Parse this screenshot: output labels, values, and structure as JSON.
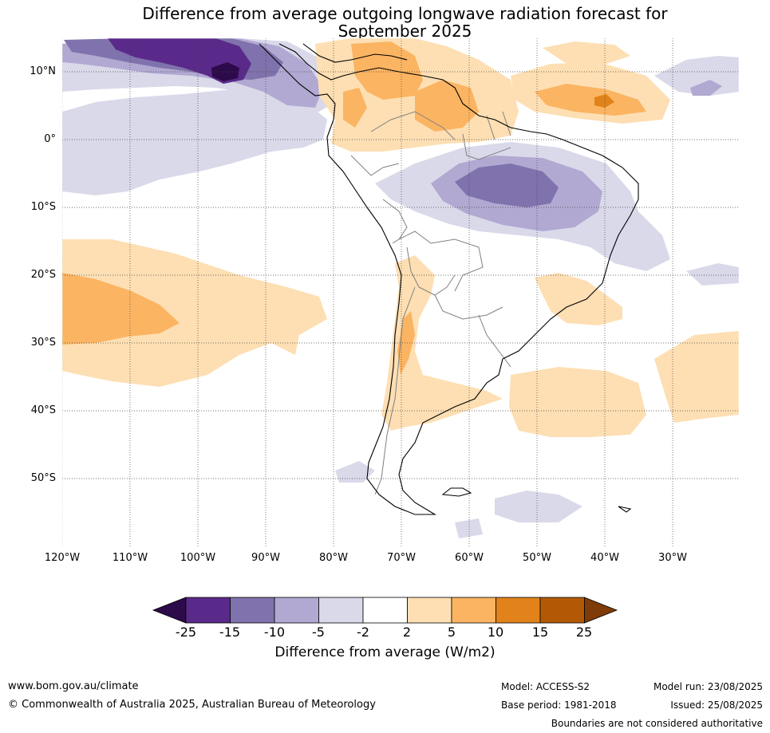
{
  "title": {
    "line1": "Difference from average outgoing longwave radiation forecast for",
    "line2": "September 2025"
  },
  "lat_labels": [
    "10°N",
    "0°",
    "10°S",
    "20°S",
    "30°S",
    "40°S",
    "50°S"
  ],
  "lon_labels": [
    "120°W",
    "110°W",
    "100°W",
    "90°W",
    "80°W",
    "70°W",
    "60°W",
    "50°W",
    "40°W",
    "30°W"
  ],
  "colorbar": {
    "ticks": [
      "-25",
      "-15",
      "-10",
      "-5",
      "-2",
      "2",
      "5",
      "10",
      "15",
      "25"
    ],
    "colors": {
      "below_-25": "#2d0a4a",
      "-25_-15": "#5a2a8a",
      "-15_-10": "#8072ac",
      "-10_-5": "#b1a9d2",
      "-5_-2": "#d9d9ea",
      "-2_2": "#ffffff",
      "2_5": "#fddfb3",
      "5_10": "#fbb462",
      "10_15": "#e1831a",
      "15_25": "#b35906",
      "above_25": "#7f3b08"
    },
    "label": "Difference from average (W/m2)"
  },
  "footer": {
    "website": "www.bom.gov.au/climate",
    "copyright": "© Commonwealth of Australia 2025, Australian Bureau of Meteorology",
    "model": "Model: ACCESS-S2",
    "base_period": "Base period: 1981-2018",
    "model_run": "Model run: 23/08/2025",
    "issued": "Issued: 25/08/2025",
    "disclaimer": "Boundaries are not considered authoritative"
  }
}
